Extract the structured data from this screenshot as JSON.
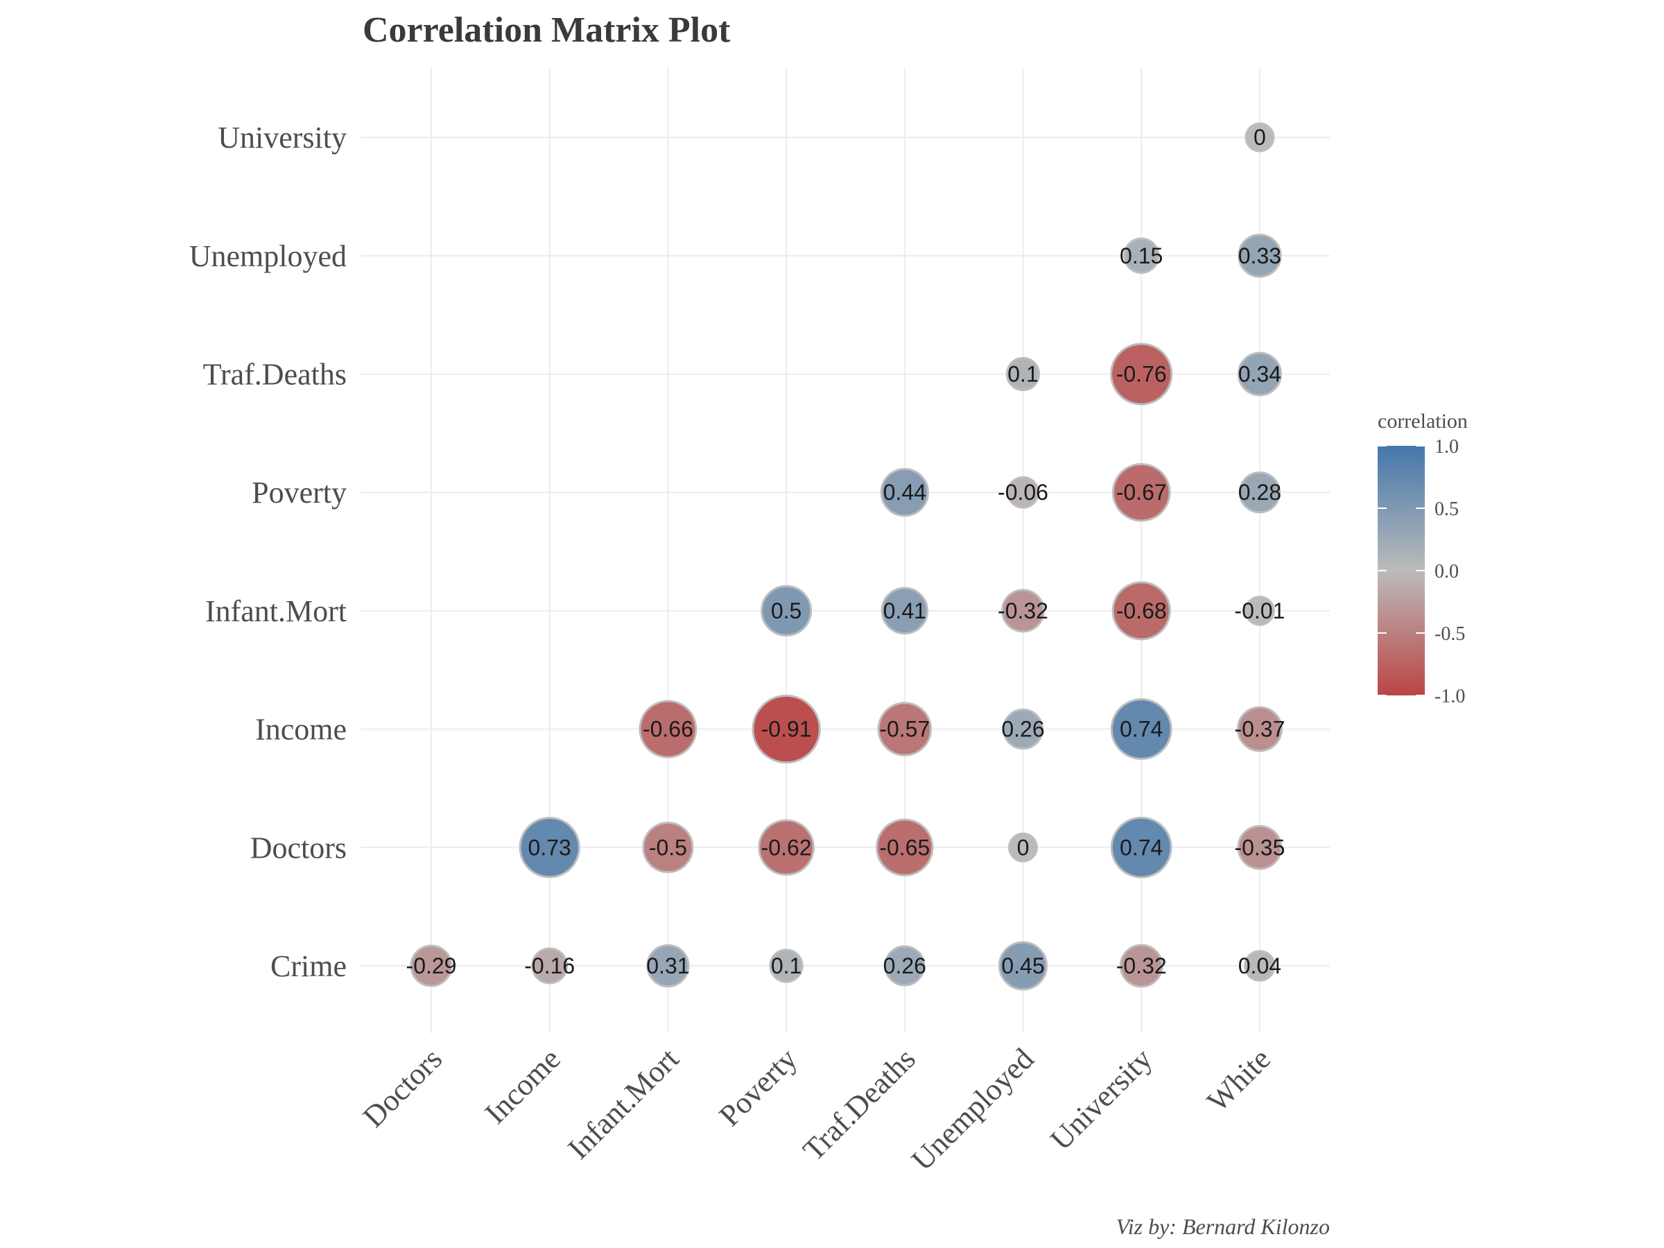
{
  "chart_data": {
    "type": "heatmap",
    "title": "Correlation Matrix Plot",
    "caption": "Viz by: Bernard Kilonzo",
    "x_categories": [
      "Doctors",
      "Income",
      "Infant.Mort",
      "Poverty",
      "Traf.Deaths",
      "Unemployed",
      "University",
      "White"
    ],
    "y_categories": [
      "Crime",
      "Doctors",
      "Income",
      "Infant.Mort",
      "Poverty",
      "Traf.Deaths",
      "Unemployed",
      "University"
    ],
    "cells": [
      {
        "x": "Doctors",
        "y": "Crime",
        "value": -0.29,
        "label": "-0.29"
      },
      {
        "x": "Income",
        "y": "Crime",
        "value": -0.16,
        "label": "-0.16"
      },
      {
        "x": "Infant.Mort",
        "y": "Crime",
        "value": 0.31,
        "label": "0.31"
      },
      {
        "x": "Poverty",
        "y": "Crime",
        "value": 0.1,
        "label": "0.1"
      },
      {
        "x": "Traf.Deaths",
        "y": "Crime",
        "value": 0.26,
        "label": "0.26"
      },
      {
        "x": "Unemployed",
        "y": "Crime",
        "value": 0.45,
        "label": "0.45"
      },
      {
        "x": "University",
        "y": "Crime",
        "value": -0.32,
        "label": "-0.32"
      },
      {
        "x": "White",
        "y": "Crime",
        "value": 0.04,
        "label": "0.04"
      },
      {
        "x": "Income",
        "y": "Doctors",
        "value": 0.73,
        "label": "0.73"
      },
      {
        "x": "Infant.Mort",
        "y": "Doctors",
        "value": -0.5,
        "label": "-0.5"
      },
      {
        "x": "Poverty",
        "y": "Doctors",
        "value": -0.62,
        "label": "-0.62"
      },
      {
        "x": "Traf.Deaths",
        "y": "Doctors",
        "value": -0.65,
        "label": "-0.65"
      },
      {
        "x": "Unemployed",
        "y": "Doctors",
        "value": 0,
        "label": "0"
      },
      {
        "x": "University",
        "y": "Doctors",
        "value": 0.74,
        "label": "0.74"
      },
      {
        "x": "White",
        "y": "Doctors",
        "value": -0.35,
        "label": "-0.35"
      },
      {
        "x": "Infant.Mort",
        "y": "Income",
        "value": -0.66,
        "label": "-0.66"
      },
      {
        "x": "Poverty",
        "y": "Income",
        "value": -0.91,
        "label": "-0.91"
      },
      {
        "x": "Traf.Deaths",
        "y": "Income",
        "value": -0.57,
        "label": "-0.57"
      },
      {
        "x": "Unemployed",
        "y": "Income",
        "value": 0.26,
        "label": "0.26"
      },
      {
        "x": "University",
        "y": "Income",
        "value": 0.74,
        "label": "0.74"
      },
      {
        "x": "White",
        "y": "Income",
        "value": -0.37,
        "label": "-0.37"
      },
      {
        "x": "Poverty",
        "y": "Infant.Mort",
        "value": 0.5,
        "label": "0.5"
      },
      {
        "x": "Traf.Deaths",
        "y": "Infant.Mort",
        "value": 0.41,
        "label": "0.41"
      },
      {
        "x": "Unemployed",
        "y": "Infant.Mort",
        "value": -0.32,
        "label": "-0.32"
      },
      {
        "x": "University",
        "y": "Infant.Mort",
        "value": -0.68,
        "label": "-0.68"
      },
      {
        "x": "White",
        "y": "Infant.Mort",
        "value": -0.01,
        "label": "-0.01"
      },
      {
        "x": "Traf.Deaths",
        "y": "Poverty",
        "value": 0.44,
        "label": "0.44"
      },
      {
        "x": "Unemployed",
        "y": "Poverty",
        "value": -0.06,
        "label": "-0.06"
      },
      {
        "x": "University",
        "y": "Poverty",
        "value": -0.67,
        "label": "-0.67"
      },
      {
        "x": "White",
        "y": "Poverty",
        "value": 0.28,
        "label": "0.28"
      },
      {
        "x": "Unemployed",
        "y": "Traf.Deaths",
        "value": 0.1,
        "label": "0.1"
      },
      {
        "x": "University",
        "y": "Traf.Deaths",
        "value": -0.76,
        "label": "-0.76"
      },
      {
        "x": "White",
        "y": "Traf.Deaths",
        "value": 0.34,
        "label": "0.34"
      },
      {
        "x": "University",
        "y": "Unemployed",
        "value": 0.15,
        "label": "0.15"
      },
      {
        "x": "White",
        "y": "Unemployed",
        "value": 0.33,
        "label": "0.33"
      },
      {
        "x": "White",
        "y": "University",
        "value": 0,
        "label": "0"
      }
    ],
    "legend": {
      "title": "correlation",
      "ticks": [
        "1.0",
        "0.5",
        "0.0",
        "-0.5",
        "-1.0"
      ],
      "tick_values": [
        1.0,
        0.5,
        0.0,
        -0.5,
        -1.0
      ],
      "placement": "right",
      "range": [
        -1.0,
        1.0
      ]
    },
    "colors": {
      "high": "#4477aa",
      "mid": "#bbbbbb",
      "low": "#bb4444",
      "bubble_outline": "#bdbdbd"
    },
    "grid": true
  }
}
